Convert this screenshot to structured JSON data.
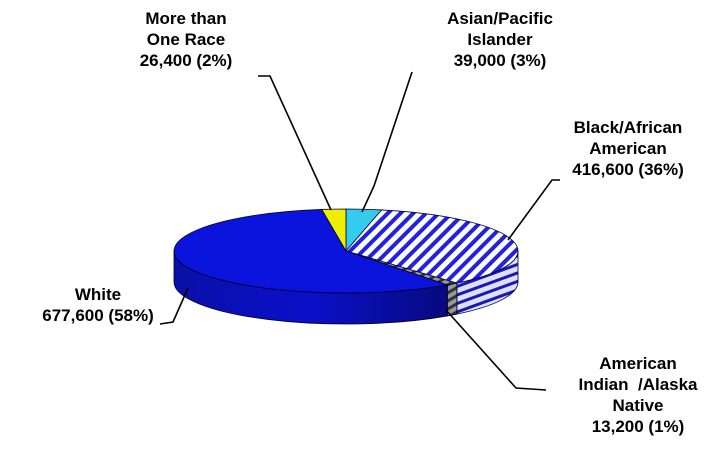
{
  "chart_data": {
    "type": "pie",
    "style": "3d",
    "title": "",
    "slices": [
      {
        "label": [
          "Asian/Pacific",
          "Islander"
        ],
        "value": 39000,
        "pct_text": "39,000 (3%)",
        "color": "#33ccee"
      },
      {
        "label": [
          "Black/African",
          "American"
        ],
        "value": 416600,
        "pct_text": "416,600 (36%)",
        "color": "#ffffff",
        "pattern": "diagonal-stripes",
        "pattern_color": "#2222dd"
      },
      {
        "label": [
          "American",
          "Indian  /Alaska",
          "Native"
        ],
        "value": 13200,
        "pct_text": "13,200 (1%)",
        "color": "#999999",
        "pattern": "diagonal-stripes",
        "pattern_color": "#333333"
      },
      {
        "label": [
          "White"
        ],
        "value": 677600,
        "pct_text": "677,600 (58%)",
        "color": "#0a14dc"
      },
      {
        "label": [
          "More than",
          "One Race"
        ],
        "value": 26400,
        "pct_text": "26,400 (2%)",
        "color": "#eeee00"
      }
    ],
    "legend": "none"
  }
}
